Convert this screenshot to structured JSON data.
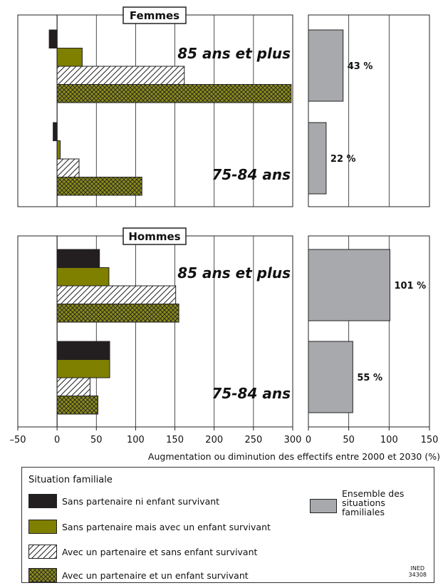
{
  "chart_data": {
    "type": "bar",
    "orientation": "horizontal",
    "xlabel": "Augmentation ou diminution des effectifs entre 2000 et 2030 (%)",
    "left_axis": {
      "xlim": [
        -50,
        300
      ],
      "ticks": [
        "–50",
        "0",
        "50",
        "100",
        "150",
        "200",
        "250",
        "300"
      ]
    },
    "right_axis": {
      "xlim": [
        0,
        150
      ],
      "ticks": [
        "0",
        "50",
        "100",
        "150"
      ]
    },
    "grid": true,
    "panels": [
      {
        "title": "Femmes",
        "groups": [
          {
            "label": "85 ans et plus",
            "values": {
              "sans_partenaire_ni_enfant": -10,
              "sans_partenaire_avec_enfant": 32,
              "partenaire_sans_enfant": 162,
              "partenaire_et_enfant": 298
            },
            "ensemble": 43,
            "ensemble_label": "43 %"
          },
          {
            "label": "75-84 ans",
            "values": {
              "sans_partenaire_ni_enfant": -5,
              "sans_partenaire_avec_enfant": 4,
              "partenaire_sans_enfant": 28,
              "partenaire_et_enfant": 108
            },
            "ensemble": 22,
            "ensemble_label": "22 %"
          }
        ]
      },
      {
        "title": "Hommes",
        "groups": [
          {
            "label": "85 ans et plus",
            "values": {
              "sans_partenaire_ni_enfant": 54,
              "sans_partenaire_avec_enfant": 66,
              "partenaire_sans_enfant": 151,
              "partenaire_et_enfant": 155
            },
            "ensemble": 101,
            "ensemble_label": "101 %"
          },
          {
            "label": "75-84 ans",
            "values": {
              "sans_partenaire_ni_enfant": 67,
              "sans_partenaire_avec_enfant": 67,
              "partenaire_sans_enfant": 42,
              "partenaire_et_enfant": 52
            },
            "ensemble": 55,
            "ensemble_label": "55 %"
          }
        ]
      }
    ]
  },
  "legend": {
    "title": "Situation familiale",
    "items": [
      {
        "key": "sans_partenaire_ni_enfant",
        "label": "Sans partenaire ni enfant survivant",
        "color": "#231f20"
      },
      {
        "key": "sans_partenaire_avec_enfant",
        "label": "Sans partenaire mais avec un enfant survivant",
        "color": "#7f7f00"
      },
      {
        "key": "partenaire_sans_enfant",
        "label": "Avec un partenaire et sans enfant survivant",
        "pattern": "hatch"
      },
      {
        "key": "partenaire_et_enfant",
        "label": "Avec un partenaire et un enfant survivant",
        "pattern": "crosshatch",
        "color": "#8c8c1a"
      }
    ],
    "ensemble_label": "Ensemble des situations familiales",
    "ensemble_color": "#a7a9ac"
  },
  "source": {
    "line1": "INED",
    "line2": "34308"
  }
}
